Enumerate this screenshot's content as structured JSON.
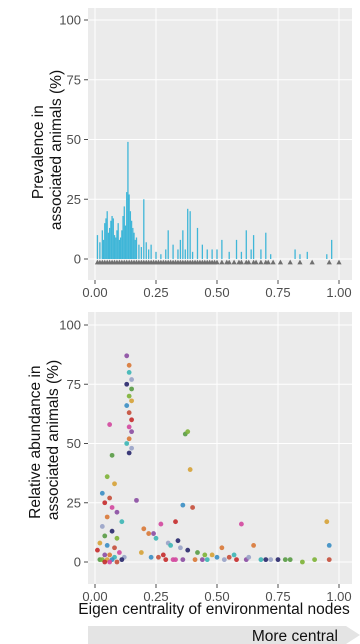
{
  "colors": {
    "panel_bg": "#ebebeb",
    "gridline": "#ffffff",
    "prevalence_bar": "#3fb6d8",
    "node_triangle": "#6f6f6f",
    "arrow_fill": "#e4e4e4",
    "point_palette": [
      "#3d8fc4",
      "#d97a3a",
      "#7fb33a",
      "#d34aa0",
      "#2b2a6e",
      "#c5503d",
      "#3fb6b5",
      "#d6a33a",
      "#8c4fa3",
      "#5a9c47",
      "#c62f2f",
      "#9aa4c8"
    ]
  },
  "x_axis": {
    "label": "Eigen  centrality of environmental nodes",
    "ticks": [
      "0.00",
      "0.25",
      "0.50",
      "0.75",
      "1.00"
    ],
    "tick_values": [
      0,
      0.25,
      0.5,
      0.75,
      1.0
    ]
  },
  "direction_arrow": {
    "label": "More central"
  },
  "chart_data": [
    {
      "type": "bar",
      "ylabel": [
        "Prevalence in",
        "associated animals (%)"
      ],
      "xlim": [
        0,
        1
      ],
      "ylim": [
        0,
        100
      ],
      "y_ticks": [
        "0",
        "25",
        "50",
        "75",
        "100"
      ],
      "y_tick_values": [
        0,
        25,
        50,
        75,
        100
      ],
      "grid": true,
      "x": [
        0.01,
        0.02,
        0.03,
        0.035,
        0.04,
        0.045,
        0.05,
        0.055,
        0.06,
        0.065,
        0.07,
        0.075,
        0.08,
        0.085,
        0.09,
        0.095,
        0.1,
        0.105,
        0.11,
        0.115,
        0.12,
        0.125,
        0.13,
        0.135,
        0.14,
        0.145,
        0.15,
        0.155,
        0.16,
        0.165,
        0.17,
        0.18,
        0.19,
        0.2,
        0.21,
        0.22,
        0.23,
        0.25,
        0.27,
        0.29,
        0.3,
        0.32,
        0.34,
        0.35,
        0.36,
        0.37,
        0.38,
        0.39,
        0.4,
        0.42,
        0.44,
        0.46,
        0.48,
        0.5,
        0.52,
        0.55,
        0.58,
        0.6,
        0.62,
        0.64,
        0.65,
        0.68,
        0.7,
        0.72,
        0.82,
        0.84,
        0.87,
        0.95,
        0.97
      ],
      "values": [
        10,
        7,
        12,
        8,
        15,
        17,
        20,
        11,
        13,
        16,
        18,
        17,
        10,
        9,
        12,
        15,
        8,
        9,
        12,
        18,
        22,
        14,
        28,
        49,
        27,
        20,
        16,
        13,
        11,
        8,
        9,
        6,
        5,
        25,
        7,
        4,
        6,
        3,
        2,
        4,
        12,
        6,
        4,
        8,
        12,
        4,
        21,
        20,
        3,
        13,
        6,
        4,
        4,
        4,
        8,
        3,
        8,
        3,
        12,
        4,
        10,
        4,
        11,
        2,
        4,
        2,
        3,
        2,
        8
      ],
      "node_x": [
        0.01,
        0.02,
        0.03,
        0.04,
        0.05,
        0.06,
        0.07,
        0.08,
        0.09,
        0.1,
        0.11,
        0.12,
        0.13,
        0.14,
        0.15,
        0.16,
        0.17,
        0.18,
        0.19,
        0.2,
        0.21,
        0.22,
        0.23,
        0.24,
        0.25,
        0.26,
        0.27,
        0.28,
        0.29,
        0.3,
        0.31,
        0.32,
        0.33,
        0.34,
        0.35,
        0.36,
        0.37,
        0.38,
        0.39,
        0.4,
        0.41,
        0.42,
        0.43,
        0.44,
        0.45,
        0.46,
        0.47,
        0.48,
        0.49,
        0.5,
        0.52,
        0.54,
        0.55,
        0.57,
        0.59,
        0.6,
        0.62,
        0.63,
        0.65,
        0.66,
        0.68,
        0.7,
        0.71,
        0.73,
        0.76,
        0.8,
        0.84,
        0.89,
        0.96,
        1.0
      ]
    },
    {
      "type": "scatter",
      "ylabel": [
        "Relative abundance in",
        "associated animals (%)"
      ],
      "xlim": [
        0,
        1
      ],
      "ylim": [
        0,
        100
      ],
      "y_ticks": [
        "0",
        "25",
        "50",
        "75",
        "100"
      ],
      "y_tick_values": [
        0,
        25,
        50,
        75,
        100
      ],
      "grid": true,
      "x": [
        0.06,
        0.13,
        0.14,
        0.14,
        0.15,
        0.13,
        0.15,
        0.14,
        0.15,
        0.13,
        0.14,
        0.15,
        0.14,
        0.15,
        0.14,
        0.13,
        0.15,
        0.14,
        0.07,
        0.05,
        0.08,
        0.03,
        0.06,
        0.04,
        0.07,
        0.09,
        0.05,
        0.11,
        0.03,
        0.07,
        0.04,
        0.09,
        0.02,
        0.05,
        0.08,
        0.01,
        0.1,
        0.04,
        0.06,
        0.08,
        0.12,
        0.11,
        0.02,
        0.03,
        0.05,
        0.07,
        0.09,
        0.04,
        0.06,
        0.17,
        0.22,
        0.25,
        0.3,
        0.34,
        0.37,
        0.38,
        0.39,
        0.36,
        0.4,
        0.33,
        0.27,
        0.24,
        0.2,
        0.31,
        0.35,
        0.38,
        0.42,
        0.45,
        0.48,
        0.5,
        0.55,
        0.58,
        0.6,
        0.62,
        0.65,
        0.68,
        0.72,
        0.75,
        0.8,
        0.85,
        0.95,
        0.96,
        0.96,
        0.28,
        0.32,
        0.44,
        0.52,
        0.57,
        0.63,
        0.7,
        0.78,
        0.9,
        0.19,
        0.23,
        0.26,
        0.29,
        0.33,
        0.36,
        0.41,
        0.46,
        0.53
      ],
      "y": [
        58,
        87,
        83,
        80,
        77,
        75,
        73,
        70,
        68,
        66,
        63,
        60,
        57,
        55,
        52,
        50,
        48,
        46,
        45,
        36,
        33,
        29,
        27,
        25,
        23,
        21,
        19,
        17,
        15,
        13,
        11,
        10,
        8,
        7,
        6,
        5,
        4,
        3,
        3,
        2,
        2,
        1,
        1,
        1,
        1,
        1,
        0,
        0,
        0,
        26,
        12,
        10,
        8,
        9,
        54,
        55,
        39,
        24,
        23,
        17,
        16,
        12,
        14,
        7,
        6,
        5,
        4,
        3,
        3,
        2,
        2,
        1,
        16,
        1,
        7,
        1,
        1,
        1,
        1,
        0,
        17,
        7,
        1,
        3,
        1,
        1,
        6,
        3,
        2,
        1,
        1,
        1,
        4,
        2,
        2,
        1,
        1,
        1,
        1,
        1,
        1
      ]
    }
  ]
}
